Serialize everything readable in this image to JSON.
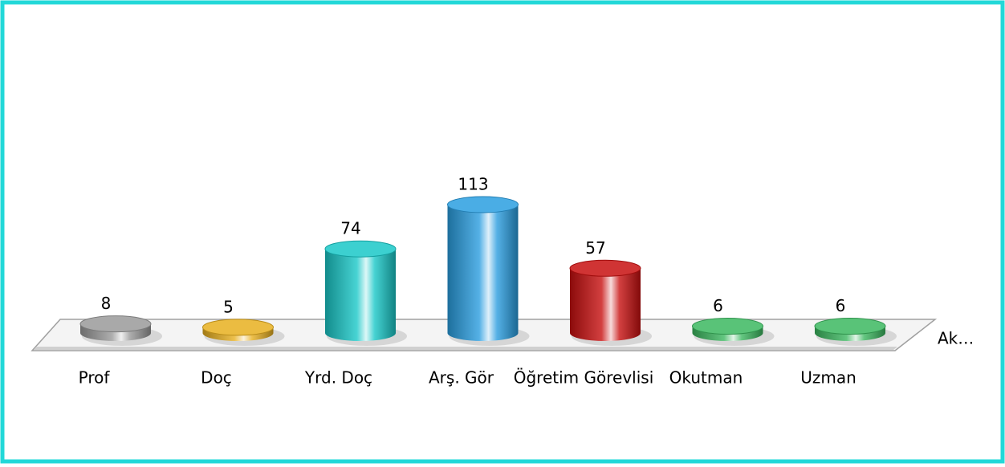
{
  "chart_data": {
    "type": "bar3d-cylinder",
    "categories": [
      "Prof",
      "Doç",
      "Yrd. Doç",
      "Arş. Gör",
      "Öğretim Görevlisi",
      "Okutman",
      "Uzman"
    ],
    "series": [
      {
        "name": "Ak…",
        "values": [
          8,
          5,
          74,
          113,
          57,
          6,
          6
        ],
        "colors": [
          "#9a9a9a",
          "#e8b020",
          "#19c8c8",
          "#2a9ee0",
          "#c81010",
          "#3cb860",
          "#3cb860"
        ]
      }
    ]
  }
}
